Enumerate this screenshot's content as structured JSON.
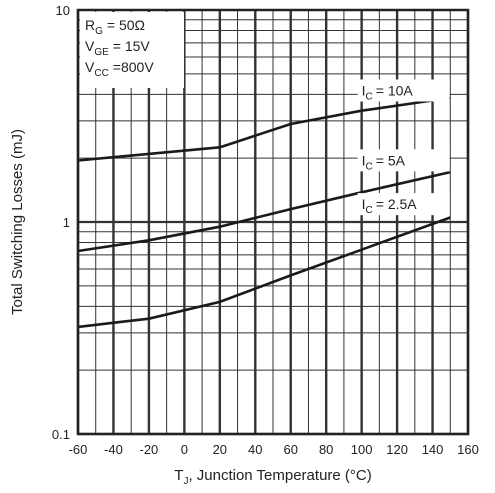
{
  "chart_data": {
    "type": "line",
    "title": "",
    "xlabel": "T",
    "xlabel_sub": "J",
    "xlabel_rest": ", Junction Temperature (°C)",
    "ylabel": "Total Switching Losses (mJ)",
    "xlim": [
      -60,
      160
    ],
    "ylim": [
      0.1,
      10
    ],
    "yscale": "log",
    "grid": true,
    "x_ticks": [
      "-60",
      "-40",
      "-20",
      "0",
      "20",
      "40",
      "60",
      "80",
      "100",
      "120",
      "140",
      "160"
    ],
    "y_ticks": [
      "0.1",
      "1",
      "10"
    ],
    "conditions": [
      {
        "sym": "R",
        "sub": "G",
        "value": "= 50Ω"
      },
      {
        "sym": "V",
        "sub": "GE",
        "value": "= 15V"
      },
      {
        "sym": "V",
        "sub": "CC",
        "value": "=800V"
      }
    ],
    "series": [
      {
        "name": "I",
        "sub": "C",
        "label": "= 10A",
        "points": [
          [
            -60,
            1.95
          ],
          [
            20,
            2.25
          ],
          [
            60,
            2.9
          ],
          [
            100,
            3.35
          ],
          [
            150,
            3.85
          ]
        ]
      },
      {
        "name": "I",
        "sub": "C",
        "label": "= 5A",
        "points": [
          [
            -60,
            0.73
          ],
          [
            -20,
            0.82
          ],
          [
            20,
            0.95
          ],
          [
            60,
            1.15
          ],
          [
            100,
            1.38
          ],
          [
            150,
            1.72
          ]
        ]
      },
      {
        "name": "I",
        "sub": "C",
        "label": "= 2.5A",
        "points": [
          [
            -60,
            0.32
          ],
          [
            -20,
            0.35
          ],
          [
            20,
            0.42
          ],
          [
            60,
            0.56
          ],
          [
            100,
            0.74
          ],
          [
            150,
            1.05
          ]
        ]
      }
    ]
  }
}
